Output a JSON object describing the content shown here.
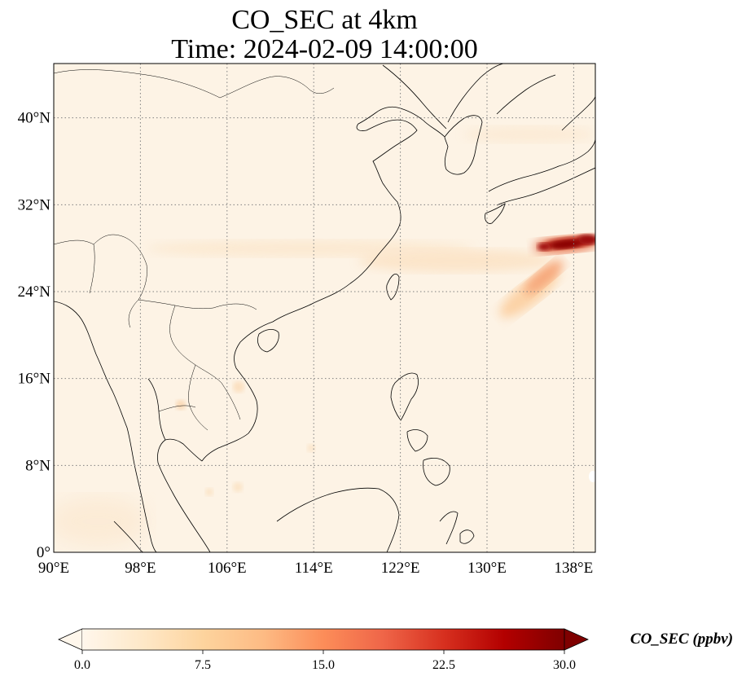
{
  "title": {
    "line1": "CO_SEC at 4km",
    "line2": "Time: 2024-02-09 14:00:00"
  },
  "map": {
    "lon_labels": [
      "90°E",
      "98°E",
      "106°E",
      "114°E",
      "122°E",
      "130°E",
      "138°E"
    ],
    "lat_labels": [
      "0°",
      "8°N",
      "16°N",
      "24°N",
      "32°N",
      "40°N"
    ],
    "lon_range": [
      90,
      140
    ],
    "lat_range": [
      0,
      45
    ],
    "gridlines": true
  },
  "colorbar": {
    "label": "CO_SEC (ppbv)",
    "ticks": [
      "0.0",
      "7.5",
      "15.0",
      "22.5",
      "30.0"
    ],
    "range": [
      0,
      30
    ],
    "colormap": "OrRd",
    "extend": "both"
  },
  "colors": {
    "background": "#fdf3e5",
    "plume_low": "#fcd09c",
    "plume_mid": "#ef6548",
    "plume_high": "#990000",
    "coast": "#000000",
    "grid": "#808080"
  }
}
